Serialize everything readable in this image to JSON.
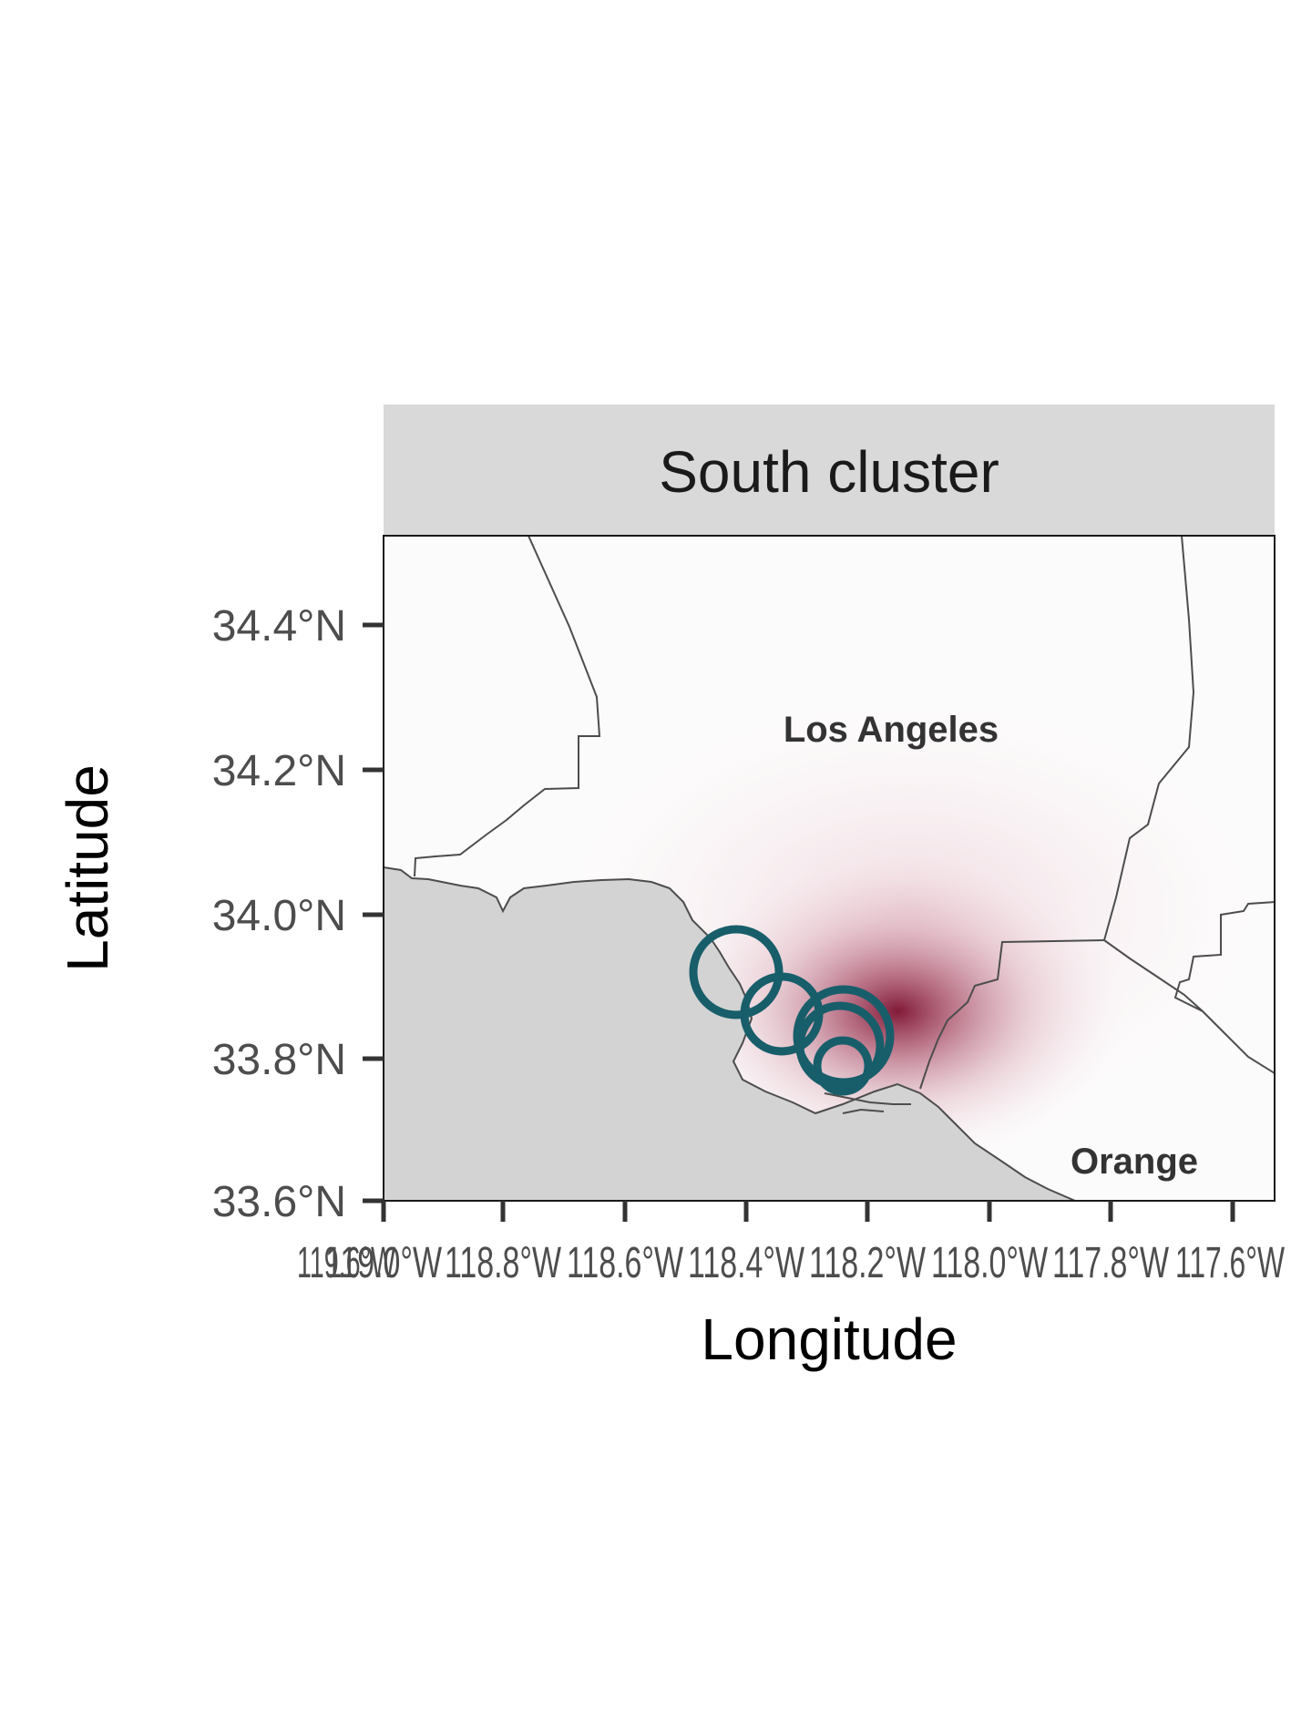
{
  "panel": {
    "title": "South cluster"
  },
  "axes": {
    "x": {
      "title": "Longitude",
      "ticks": [
        "119.0°W",
        "118.8°W",
        "118.6°W",
        "118.4°W",
        "118.2°W",
        "118.0°W",
        "117.8°W",
        "117.6°W"
      ],
      "overlap_label": "119.6°W"
    },
    "y": {
      "title": "Latitude",
      "ticks": [
        "34.4°N",
        "34.2°N",
        "34.0°N",
        "33.8°N"
      ],
      "overlap_label": "33.6°N"
    }
  },
  "places": [
    {
      "name": "Los Angeles",
      "lon": -118.25,
      "lat": 34.22
    },
    {
      "name": "Orange",
      "lon": -117.86,
      "lat": 33.65
    }
  ],
  "colors": {
    "ocean": "#d3d3d3",
    "land": "#fcfbfb",
    "density_high": "#7b0f2e",
    "circle": "#175e6a",
    "strip": "#d9d9d9"
  },
  "chart_data": {
    "type": "map",
    "title": "South cluster",
    "xlabel": "Longitude",
    "ylabel": "Latitude",
    "xlim": [
      -119.0,
      -117.55
    ],
    "ylim": [
      33.6,
      34.52
    ],
    "grid": false,
    "density_peak": {
      "lon": -118.17,
      "lat": 33.85
    },
    "circles": [
      {
        "lon": -118.43,
        "lat": 33.92
      },
      {
        "lon": -118.34,
        "lat": 33.86
      },
      {
        "lon": -118.24,
        "lat": 33.83
      },
      {
        "lon": -118.23,
        "lat": 33.82
      },
      {
        "lon": -118.23,
        "lat": 33.79
      }
    ]
  }
}
